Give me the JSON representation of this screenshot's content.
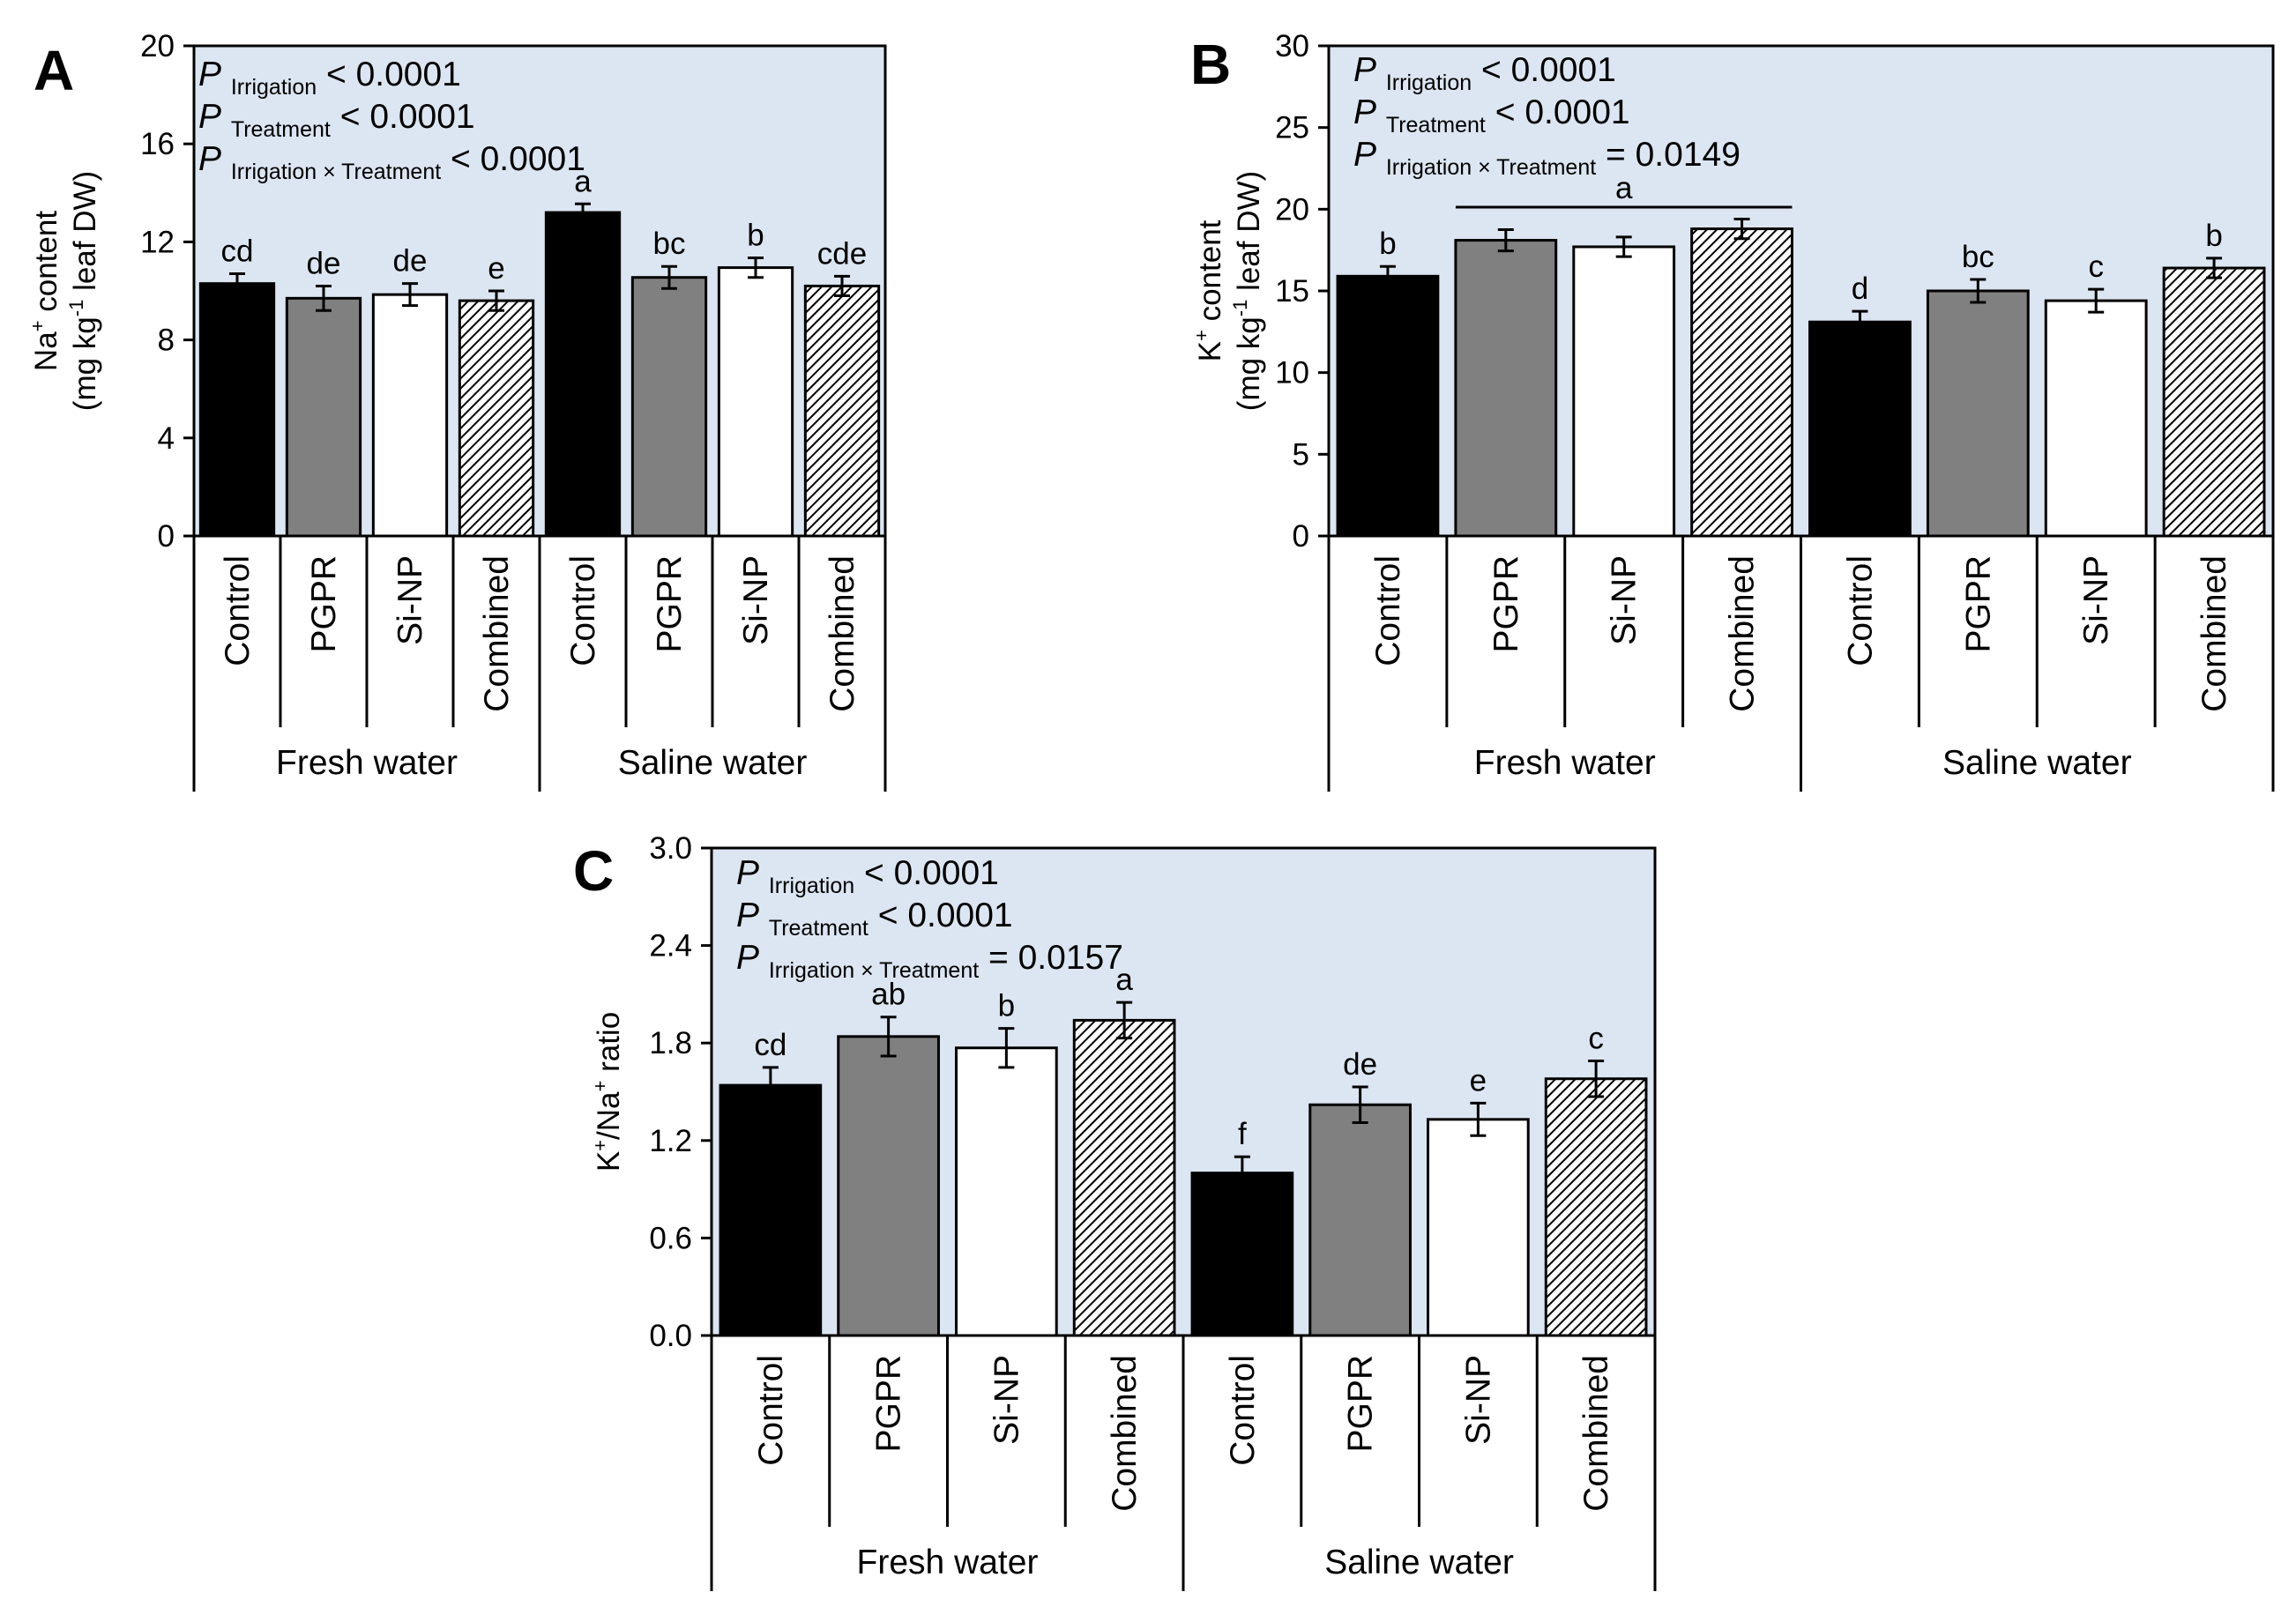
{
  "figure": {
    "bar_styles": {
      "Control": {
        "fill": "#000000"
      },
      "PGPR": {
        "fill": "#808080"
      },
      "Si-NP": {
        "fill": "#ffffff"
      },
      "Combined": {
        "fill": "hatch"
      }
    },
    "plot_background": "#dce6f2",
    "groups": [
      "Fresh water",
      "Saline water"
    ],
    "treatments": [
      "Control",
      "PGPR",
      "Si-NP",
      "Combined"
    ]
  },
  "chart_data": [
    {
      "panel": "A",
      "type": "bar",
      "ylabel": {
        "line1_pre": "Na",
        "line1_sup": "+",
        "line1_post": " content",
        "line2_pre": "(mg kg",
        "line2_sup": "-1",
        "line2_post": " leaf DW)"
      },
      "ylim": [
        0,
        20
      ],
      "yticks": [
        "0",
        "4",
        "8",
        "12",
        "16",
        "20"
      ],
      "categories": [
        "Control",
        "PGPR",
        "Si-NP",
        "Combined",
        "Control",
        "PGPR",
        "Si-NP",
        "Combined"
      ],
      "groups": [
        {
          "label": "Fresh water",
          "span": [
            0,
            3
          ]
        },
        {
          "label": "Saline water",
          "span": [
            4,
            7
          ]
        }
      ],
      "values": [
        10.3,
        9.7,
        9.85,
        9.6,
        13.2,
        10.55,
        10.95,
        10.2
      ],
      "errors": [
        0.4,
        0.5,
        0.45,
        0.4,
        0.35,
        0.45,
        0.4,
        0.4
      ],
      "letters": [
        "cd",
        "de",
        "de",
        "e",
        "a",
        "bc",
        "b",
        "cde"
      ],
      "stats": [
        {
          "p": "P",
          "sub": "Irrigation",
          "rest": " < 0.0001"
        },
        {
          "p": "P",
          "sub": "Treatment",
          "rest": " < 0.0001"
        },
        {
          "p": "P",
          "sub": "Irrigation × Treatment",
          "rest": " < 0.0001"
        }
      ]
    },
    {
      "panel": "B",
      "type": "bar",
      "ylabel": {
        "line1_pre": "K",
        "line1_sup": "+",
        "line1_post": " content",
        "line2_pre": "(mg kg",
        "line2_sup": "-1",
        "line2_post": " leaf DW)"
      },
      "ylim": [
        0,
        30
      ],
      "yticks": [
        "0",
        "5",
        "10",
        "15",
        "20",
        "25",
        "30"
      ],
      "categories": [
        "Control",
        "PGPR",
        "Si-NP",
        "Combined",
        "Control",
        "PGPR",
        "Si-NP",
        "Combined"
      ],
      "groups": [
        {
          "label": "Fresh water",
          "span": [
            0,
            3
          ]
        },
        {
          "label": "Saline water",
          "span": [
            4,
            7
          ]
        }
      ],
      "values": [
        15.9,
        18.1,
        17.7,
        18.8,
        13.1,
        15.0,
        14.4,
        16.4
      ],
      "errors": [
        0.6,
        0.65,
        0.6,
        0.6,
        0.65,
        0.7,
        0.7,
        0.6
      ],
      "letters": [
        "b",
        "",
        "",
        "",
        "d",
        "bc",
        "c",
        "b"
      ],
      "bracket": {
        "from": 1,
        "to": 3,
        "letter": "a",
        "value": 19.8
      },
      "stats": [
        {
          "p": "P",
          "sub": "Irrigation",
          "rest": " < 0.0001"
        },
        {
          "p": "P",
          "sub": "Treatment",
          "rest": " < 0.0001"
        },
        {
          "p": "P",
          "sub": "Irrigation × Treatment",
          "rest": " = 0.0149"
        }
      ]
    },
    {
      "panel": "C",
      "type": "bar",
      "ylabel": {
        "line1_pre": "K",
        "line1_sup": "+",
        "line1_post": "/Na",
        "line1_sup2": "+",
        "line1_post2": " ratio"
      },
      "ylim": [
        0,
        3.0
      ],
      "yticks": [
        "0.0",
        "0.6",
        "1.2",
        "1.8",
        "2.4",
        "3.0"
      ],
      "categories": [
        "Control",
        "PGPR",
        "Si-NP",
        "Combined",
        "Control",
        "PGPR",
        "Si-NP",
        "Combined"
      ],
      "groups": [
        {
          "label": "Fresh water",
          "span": [
            0,
            3
          ]
        },
        {
          "label": "Saline water",
          "span": [
            4,
            7
          ]
        }
      ],
      "values": [
        1.54,
        1.84,
        1.77,
        1.94,
        1.0,
        1.42,
        1.33,
        1.58
      ],
      "errors": [
        0.11,
        0.12,
        0.12,
        0.11,
        0.1,
        0.11,
        0.1,
        0.11
      ],
      "letters": [
        "cd",
        "ab",
        "b",
        "a",
        "f",
        "de",
        "e",
        "c"
      ],
      "stats": [
        {
          "p": "P",
          "sub": "Irrigation",
          "rest": " < 0.0001"
        },
        {
          "p": "P",
          "sub": "Treatment",
          "rest": " < 0.0001"
        },
        {
          "p": "P",
          "sub": "Irrigation × Treatment",
          "rest": " = 0.0157"
        }
      ]
    }
  ]
}
